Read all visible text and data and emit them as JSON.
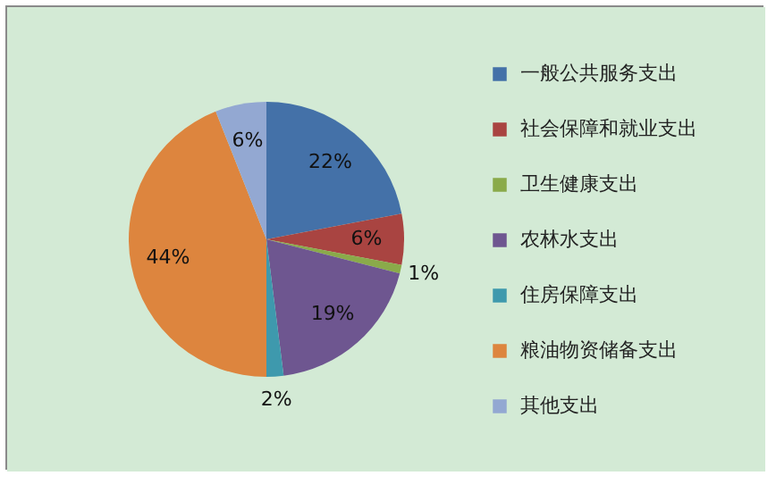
{
  "chart_data": {
    "type": "pie",
    "categories": [
      "一般公共服务支出",
      "社会保障和就业支出",
      "卫生健康支出",
      "农林水支出",
      "住房保障支出",
      "粮油物资储备支出",
      "其他支出"
    ],
    "values": [
      22,
      6,
      1,
      19,
      2,
      44,
      6
    ],
    "colors": [
      "#4471a8",
      "#a94441",
      "#8aaa4a",
      "#6e5690",
      "#3e99ad",
      "#dd853e",
      "#93a8d2"
    ],
    "value_labels": [
      "22%",
      "6%",
      "1%",
      "19%",
      "2%",
      "44%",
      "6%"
    ],
    "legend": "right"
  }
}
